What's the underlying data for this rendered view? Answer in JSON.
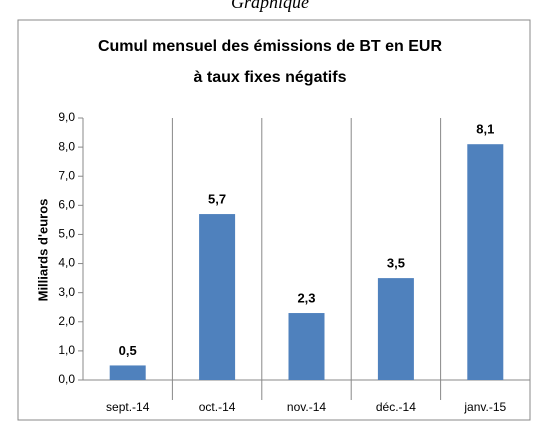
{
  "caption": "Graphique",
  "chart_data": {
    "type": "bar",
    "title": [
      "Cumul mensuel des émissions de BT en EUR",
      "à taux fixes négatifs"
    ],
    "y_label": "Milliards  d'euros",
    "categories": [
      "sept.-14",
      "oct.-14",
      "nov.-14",
      "déc.-14",
      "janv.-15"
    ],
    "values": [
      0.5,
      5.7,
      2.3,
      3.5,
      8.1
    ],
    "value_labels": [
      "0,5",
      "5,7",
      "2,3",
      "3,5",
      "8,1"
    ],
    "color": "#4f81bd",
    "ylim": [
      0,
      9
    ],
    "yticks": [
      {
        "value": 0,
        "label": "0,0"
      },
      {
        "value": 1,
        "label": "1,0"
      },
      {
        "value": 2,
        "label": "2,0"
      },
      {
        "value": 3,
        "label": "3,0"
      },
      {
        "value": 4,
        "label": "4,0"
      },
      {
        "value": 5,
        "label": "5,0"
      },
      {
        "value": 6,
        "label": "6,0"
      },
      {
        "value": 7,
        "label": "7,0"
      },
      {
        "value": 8,
        "label": "8,0"
      },
      {
        "value": 9,
        "label": "9,0"
      }
    ]
  }
}
